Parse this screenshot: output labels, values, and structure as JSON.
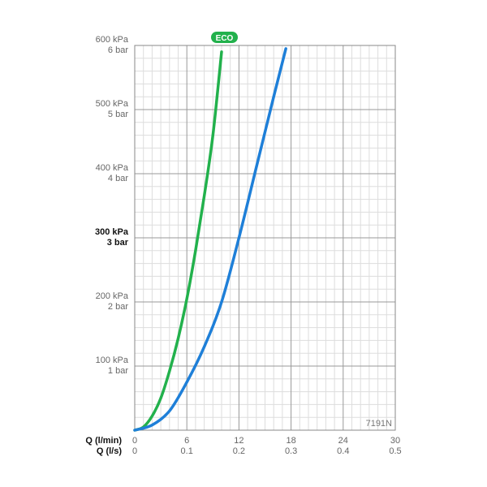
{
  "chart_data": {
    "type": "line",
    "model_code": "7191N",
    "badge": "ECO",
    "x_axis": {
      "title_lmin": "Q (l/min)",
      "title_ls": "Q (l/s)",
      "ticks_lmin": [
        "0",
        "6",
        "12",
        "18",
        "24",
        "30"
      ],
      "ticks_ls": [
        "0",
        "0.1",
        "0.2",
        "0.3",
        "0.4",
        "0.5"
      ],
      "range": [
        0,
        30
      ]
    },
    "y_axis": {
      "range": [
        0,
        600
      ],
      "ticks": [
        {
          "value": 100,
          "kpa": "100 kPa",
          "bar": "1 bar",
          "bold": false
        },
        {
          "value": 200,
          "kpa": "200 kPa",
          "bar": "2 bar",
          "bold": false
        },
        {
          "value": 300,
          "kpa": "300 kPa",
          "bar": "3 bar",
          "bold": true
        },
        {
          "value": 400,
          "kpa": "400 kPa",
          "bar": "4 bar",
          "bold": false
        },
        {
          "value": 500,
          "kpa": "500 kPa",
          "bar": "5 bar",
          "bold": false
        },
        {
          "value": 600,
          "kpa": "600 kPa",
          "bar": "6 bar",
          "bold": false
        }
      ]
    },
    "grid": true,
    "series": [
      {
        "color": "#22b14c",
        "points": [
          [
            0,
            0
          ],
          [
            1,
            5
          ],
          [
            2,
            22
          ],
          [
            3,
            50
          ],
          [
            4,
            92
          ],
          [
            5,
            143
          ],
          [
            6,
            205
          ],
          [
            7,
            280
          ],
          [
            8,
            365
          ],
          [
            9,
            460
          ],
          [
            10,
            590
          ]
        ]
      },
      {
        "color": "#1e7fd8",
        "points": [
          [
            0,
            0
          ],
          [
            2,
            8
          ],
          [
            4,
            30
          ],
          [
            6,
            75
          ],
          [
            8,
            130
          ],
          [
            10,
            200
          ],
          [
            12,
            300
          ],
          [
            14,
            410
          ],
          [
            16,
            520
          ],
          [
            17.4,
            595
          ]
        ]
      }
    ],
    "colors": {
      "eco_badge": "#22b14c",
      "grid_major": "#999999",
      "grid_minor": "#dddddd"
    }
  }
}
